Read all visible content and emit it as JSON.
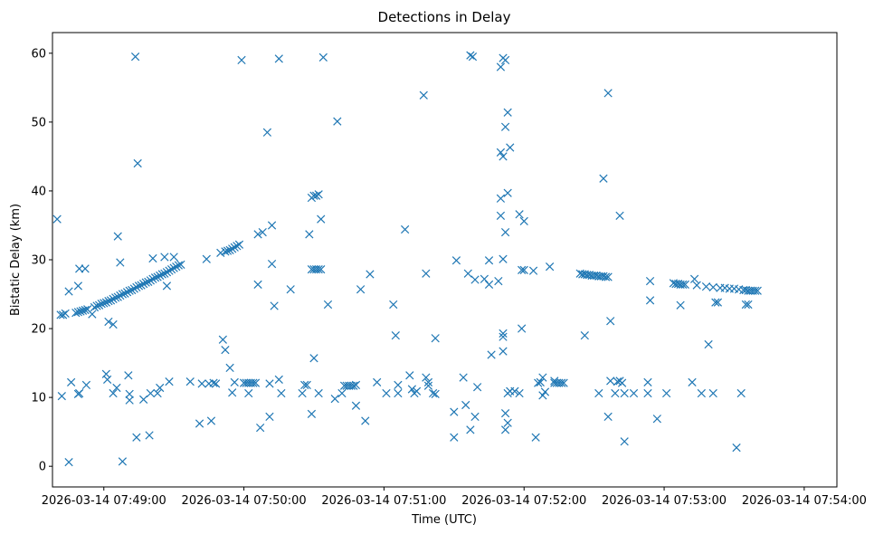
{
  "chart_data": {
    "type": "scatter",
    "title": "Detections in Delay",
    "xlabel": "Time (UTC)",
    "ylabel": "Bistatic Delay (km)",
    "marker": "x",
    "color": "#1f77b4",
    "grid": false,
    "x_unit": "seconds after 2026-03-14 07:49:00",
    "xlim": [
      -22,
      314
    ],
    "ylim": [
      -3,
      63
    ],
    "x_ticks": [
      {
        "value": 0,
        "label": "2026-03-14 07:49:00"
      },
      {
        "value": 60,
        "label": "2026-03-14 07:50:00"
      },
      {
        "value": 120,
        "label": "2026-03-14 07:51:00"
      },
      {
        "value": 180,
        "label": "2026-03-14 07:52:00"
      },
      {
        "value": 240,
        "label": "2026-03-14 07:53:00"
      },
      {
        "value": 300,
        "label": "2026-03-14 07:54:00"
      }
    ],
    "y_ticks": [
      {
        "value": 0,
        "label": "0"
      },
      {
        "value": 10,
        "label": "10"
      },
      {
        "value": 20,
        "label": "20"
      },
      {
        "value": 30,
        "label": "30"
      },
      {
        "value": 40,
        "label": "40"
      },
      {
        "value": 50,
        "label": "50"
      },
      {
        "value": 60,
        "label": "60"
      }
    ],
    "points": [
      [
        -20,
        35.9
      ],
      [
        -18.5,
        22
      ],
      [
        -17.5,
        22
      ],
      [
        -16.5,
        22.2
      ],
      [
        -18,
        10.2
      ],
      [
        -15,
        25.4
      ],
      [
        -15,
        0.6
      ],
      [
        -14,
        12.2
      ],
      [
        -12,
        22.3
      ],
      [
        -11,
        22.4
      ],
      [
        -10,
        22.5
      ],
      [
        -9,
        22.6
      ],
      [
        -8,
        22.7
      ],
      [
        -7,
        22.8
      ],
      [
        -11,
        26.2
      ],
      [
        -10.5,
        28.7
      ],
      [
        -8,
        28.7
      ],
      [
        -11,
        10.5
      ],
      [
        -10.5,
        10.6
      ],
      [
        -7.5,
        11.8
      ],
      [
        -5,
        22.1
      ],
      [
        -4,
        23.1
      ],
      [
        -3,
        23.3
      ],
      [
        -2,
        23.4
      ],
      [
        -1,
        23.6
      ],
      [
        0,
        23.7
      ],
      [
        1,
        23.8
      ],
      [
        2,
        24
      ],
      [
        3,
        24.1
      ],
      [
        4,
        24.3
      ],
      [
        5,
        24.5
      ],
      [
        6,
        24.6
      ],
      [
        7,
        24.8
      ],
      [
        8,
        25
      ],
      [
        9,
        25.1
      ],
      [
        10,
        25.3
      ],
      [
        11,
        25.5
      ],
      [
        12,
        25.6
      ],
      [
        13,
        25.8
      ],
      [
        14,
        26
      ],
      [
        15,
        26.2
      ],
      [
        16,
        26.3
      ],
      [
        17,
        26.5
      ],
      [
        18,
        26.7
      ],
      [
        19,
        26.8
      ],
      [
        20,
        27
      ],
      [
        21,
        27.2
      ],
      [
        22,
        27.4
      ],
      [
        23,
        27.5
      ],
      [
        24,
        27.7
      ],
      [
        25,
        27.9
      ],
      [
        26,
        28
      ],
      [
        27,
        28.2
      ],
      [
        28,
        28.4
      ],
      [
        29,
        28.6
      ],
      [
        30,
        28.8
      ],
      [
        31,
        29
      ],
      [
        32,
        29.2
      ],
      [
        33,
        29.3
      ],
      [
        2,
        21
      ],
      [
        4,
        20.6
      ],
      [
        6,
        33.4
      ],
      [
        7,
        29.6
      ],
      [
        1,
        13.4
      ],
      [
        1.5,
        12.6
      ],
      [
        4,
        10.6
      ],
      [
        5.5,
        11.4
      ],
      [
        8,
        0.7
      ],
      [
        10.5,
        13.2
      ],
      [
        11,
        10.5
      ],
      [
        11,
        9.6
      ],
      [
        13.5,
        59.5
      ],
      [
        14.5,
        44
      ],
      [
        14,
        4.2
      ],
      [
        17,
        9.7
      ],
      [
        20,
        10.6
      ],
      [
        19.5,
        4.5
      ],
      [
        21,
        30.2
      ],
      [
        23,
        10.6
      ],
      [
        24,
        11.4
      ],
      [
        26,
        30.4
      ],
      [
        28,
        12.3
      ],
      [
        30,
        30.4
      ],
      [
        27,
        26.2
      ],
      [
        37,
        12.3
      ],
      [
        41,
        6.2
      ],
      [
        42,
        12
      ],
      [
        44,
        30.1
      ],
      [
        45,
        12
      ],
      [
        46,
        6.6
      ],
      [
        47,
        12.1
      ],
      [
        48,
        12
      ],
      [
        50,
        31
      ],
      [
        51,
        18.4
      ],
      [
        52,
        16.9
      ],
      [
        52,
        31.2
      ],
      [
        53,
        31.3
      ],
      [
        54,
        31.4
      ],
      [
        55,
        31.6
      ],
      [
        56,
        31.8
      ],
      [
        57,
        32
      ],
      [
        58,
        32.2
      ],
      [
        59,
        59
      ],
      [
        54,
        14.3
      ],
      [
        55,
        10.7
      ],
      [
        56,
        12.2
      ],
      [
        60,
        12.1
      ],
      [
        62,
        10.6
      ],
      [
        61,
        12.1
      ],
      [
        62,
        12.1
      ],
      [
        63,
        12.1
      ],
      [
        64,
        12.1
      ],
      [
        65,
        12.1
      ],
      [
        66,
        33.7
      ],
      [
        66,
        26.4
      ],
      [
        68,
        34
      ],
      [
        67,
        5.6
      ],
      [
        70,
        48.5
      ],
      [
        71,
        12
      ],
      [
        72,
        29.4
      ],
      [
        71,
        7.2
      ],
      [
        72,
        35
      ],
      [
        73,
        23.3
      ],
      [
        75,
        59.2
      ],
      [
        75,
        12.6
      ],
      [
        76,
        10.6
      ],
      [
        80,
        25.7
      ],
      [
        85,
        10.6
      ],
      [
        86,
        11.8
      ],
      [
        87,
        11.8
      ],
      [
        88,
        33.7
      ],
      [
        89,
        39
      ],
      [
        90,
        39.3
      ],
      [
        91,
        39.3
      ],
      [
        92,
        39.5
      ],
      [
        89,
        28.6
      ],
      [
        90,
        28.6
      ],
      [
        91,
        28.6
      ],
      [
        92,
        28.6
      ],
      [
        93,
        28.6
      ],
      [
        90,
        15.7
      ],
      [
        89,
        7.6
      ],
      [
        92,
        10.6
      ],
      [
        93,
        35.9
      ],
      [
        94,
        59.4
      ],
      [
        96,
        23.5
      ],
      [
        99,
        9.8
      ],
      [
        100,
        50.1
      ],
      [
        102,
        10.6
      ],
      [
        103,
        11.7
      ],
      [
        104,
        11.7
      ],
      [
        105,
        11.7
      ],
      [
        106,
        11.7
      ],
      [
        107,
        11.7
      ],
      [
        108,
        11.8
      ],
      [
        108,
        8.8
      ],
      [
        110,
        25.7
      ],
      [
        112,
        6.6
      ],
      [
        114,
        27.9
      ],
      [
        117,
        12.2
      ],
      [
        121,
        10.6
      ],
      [
        124,
        23.5
      ],
      [
        126,
        10.6
      ],
      [
        126,
        11.8
      ],
      [
        125,
        19
      ],
      [
        129,
        34.4
      ],
      [
        131,
        13.2
      ],
      [
        132,
        11.2
      ],
      [
        133,
        10.6
      ],
      [
        134,
        10.9
      ],
      [
        137,
        53.9
      ],
      [
        138,
        12.9
      ],
      [
        139,
        12.2
      ],
      [
        138,
        28
      ],
      [
        139,
        11.7
      ],
      [
        141,
        10.6
      ],
      [
        142,
        10.5
      ],
      [
        142,
        18.6
      ],
      [
        150,
        7.9
      ],
      [
        150,
        4.2
      ],
      [
        151,
        29.9
      ],
      [
        154,
        12.9
      ],
      [
        155,
        8.9
      ],
      [
        156,
        28
      ],
      [
        157,
        5.3
      ],
      [
        157,
        59.7
      ],
      [
        158,
        59.5
      ],
      [
        159,
        27.1
      ],
      [
        159,
        7.2
      ],
      [
        160,
        11.5
      ],
      [
        163,
        27.2
      ],
      [
        165,
        29.9
      ],
      [
        165,
        26.4
      ],
      [
        166,
        16.2
      ],
      [
        170,
        58
      ],
      [
        171,
        59.3
      ],
      [
        172,
        59
      ],
      [
        170,
        38.9
      ],
      [
        170,
        36.4
      ],
      [
        170,
        45.6
      ],
      [
        171,
        45
      ],
      [
        172,
        49.3
      ],
      [
        173,
        39.7
      ],
      [
        173,
        51.4
      ],
      [
        174,
        46.3
      ],
      [
        171,
        30.1
      ],
      [
        171,
        19.3
      ],
      [
        171,
        16.7
      ],
      [
        171,
        18.8
      ],
      [
        172,
        7.7
      ],
      [
        172,
        5.3
      ],
      [
        172,
        34
      ],
      [
        173,
        6.3
      ],
      [
        173,
        10.6
      ],
      [
        174,
        10.9
      ],
      [
        169,
        26.9
      ],
      [
        176,
        10.9
      ],
      [
        178,
        36.6
      ],
      [
        179,
        20
      ],
      [
        180,
        35.6
      ],
      [
        179,
        28.5
      ],
      [
        180,
        28.5
      ],
      [
        178,
        10.6
      ],
      [
        184,
        28.4
      ],
      [
        185,
        4.2
      ],
      [
        186,
        12.1
      ],
      [
        187,
        12.2
      ],
      [
        188,
        10.3
      ],
      [
        189,
        10.8
      ],
      [
        188,
        12.9
      ],
      [
        191,
        29
      ],
      [
        193,
        12.4
      ],
      [
        194,
        12.1
      ],
      [
        195,
        12.1
      ],
      [
        196,
        12.1
      ],
      [
        197,
        12.1
      ],
      [
        193,
        12.1
      ],
      [
        204,
        28
      ],
      [
        205,
        27.9
      ],
      [
        206,
        27.9
      ],
      [
        207,
        27.8
      ],
      [
        208,
        27.8
      ],
      [
        209,
        27.7
      ],
      [
        210,
        27.7
      ],
      [
        211,
        27.7
      ],
      [
        212,
        27.6
      ],
      [
        213,
        27.6
      ],
      [
        214,
        27.6
      ],
      [
        215,
        27.5
      ],
      [
        216,
        27.5
      ],
      [
        206,
        19
      ],
      [
        212,
        10.6
      ],
      [
        214,
        41.8
      ],
      [
        216,
        54.2
      ],
      [
        217,
        21.1
      ],
      [
        217,
        12.4
      ],
      [
        216,
        7.2
      ],
      [
        219,
        10.6
      ],
      [
        220,
        12.3
      ],
      [
        221,
        12.4
      ],
      [
        221,
        36.4
      ],
      [
        222,
        12.1
      ],
      [
        223,
        3.6
      ],
      [
        223,
        10.6
      ],
      [
        227,
        10.6
      ],
      [
        233,
        10.6
      ],
      [
        233,
        12.2
      ],
      [
        234,
        26.9
      ],
      [
        234,
        24.1
      ],
      [
        237,
        6.9
      ],
      [
        241,
        10.6
      ],
      [
        244,
        26.6
      ],
      [
        245,
        26.5
      ],
      [
        246,
        26.5
      ],
      [
        247,
        26.4
      ],
      [
        248,
        26.4
      ],
      [
        249,
        26.4
      ],
      [
        247,
        23.4
      ],
      [
        252,
        12.2
      ],
      [
        253,
        27.2
      ],
      [
        254,
        26.3
      ],
      [
        256,
        10.6
      ],
      [
        258,
        26.1
      ],
      [
        259,
        17.7
      ],
      [
        261,
        26
      ],
      [
        261,
        10.6
      ],
      [
        262,
        23.8
      ],
      [
        263,
        23.8
      ],
      [
        264,
        25.9
      ],
      [
        266,
        25.9
      ],
      [
        268,
        25.8
      ],
      [
        270,
        25.8
      ],
      [
        271,
        2.7
      ],
      [
        272,
        25.7
      ],
      [
        273,
        10.6
      ],
      [
        274,
        25.6
      ],
      [
        275,
        25.6
      ],
      [
        276,
        25.5
      ],
      [
        277,
        25.5
      ],
      [
        278,
        25.5
      ],
      [
        279,
        25.5
      ],
      [
        280,
        25.5
      ],
      [
        275,
        23.5
      ],
      [
        276,
        23.5
      ]
    ]
  }
}
